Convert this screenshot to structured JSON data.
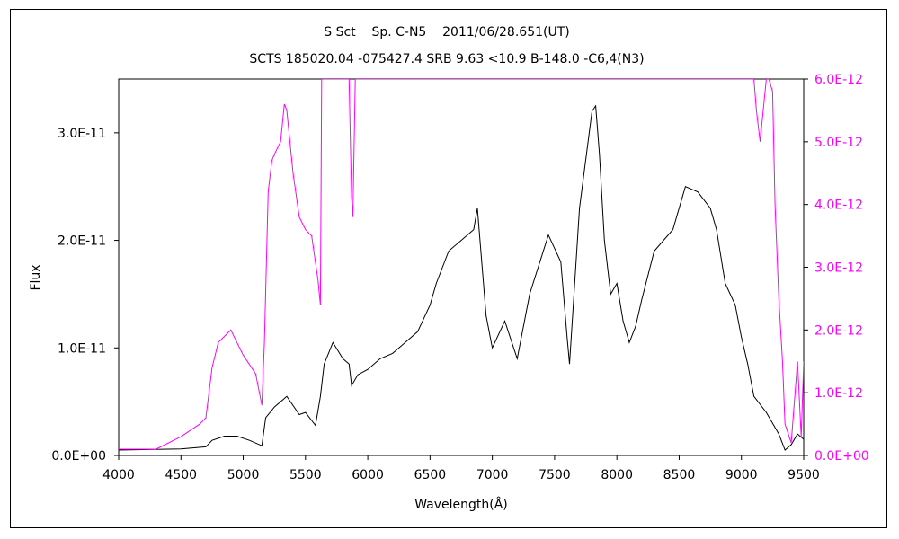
{
  "chart_data": {
    "type": "line",
    "title": "S Sct    Sp. C-N5    2011/06/28.651(UT)",
    "subtitle": "SCTS 185020.04 -075427.4 SRB 9.63 <10.9 B-148.0 -C6,4(N3)",
    "xlabel": "Wavelength(Å)",
    "ylabel": "Flux",
    "xlim": [
      4000,
      9500
    ],
    "ylim": [
      0,
      3.5e-11
    ],
    "y2lim": [
      0,
      6e-12
    ],
    "x_ticks": [
      "4000",
      "4500",
      "5000",
      "5500",
      "6000",
      "6500",
      "7000",
      "7500",
      "8000",
      "8500",
      "9000",
      "9500"
    ],
    "y_ticks": [
      "0.0E+00",
      "1.0E-11",
      "2.0E-11",
      "3.0E-11"
    ],
    "y2_ticks": [
      "0.0E+00",
      "1.0E-12",
      "2.0E-12",
      "3.0E-12",
      "4.0E-12",
      "5.0E-12",
      "6.0E-12"
    ],
    "grid": false,
    "colors": {
      "primary": "#000000",
      "secondary": "#ff00ff"
    },
    "series": [
      {
        "axis": "left",
        "color": "#000000",
        "x": [
          4000,
          4500,
          4700,
          4750,
          4850,
          4950,
          5050,
          5150,
          5180,
          5250,
          5350,
          5450,
          5500,
          5580,
          5620,
          5650,
          5720,
          5800,
          5850,
          5870,
          5920,
          6000,
          6100,
          6200,
          6300,
          6400,
          6500,
          6550,
          6650,
          6750,
          6850,
          6880,
          6950,
          7000,
          7100,
          7200,
          7300,
          7450,
          7550,
          7600,
          7620,
          7700,
          7800,
          7830,
          7860,
          7900,
          7950,
          8000,
          8050,
          8100,
          8150,
          8200,
          8300,
          8450,
          8550,
          8650,
          8750,
          8800,
          8870,
          8950,
          9000,
          9050,
          9100,
          9200,
          9300,
          9350,
          9400,
          9450,
          9500
        ],
        "y": [
          5e-13,
          6e-13,
          8e-13,
          1.4e-12,
          1.8e-12,
          1.8e-12,
          1.4e-12,
          9e-13,
          3.5e-12,
          4.5e-12,
          5.5e-12,
          3.8e-12,
          4e-12,
          2.8e-12,
          5.5e-12,
          8.5e-12,
          1.05e-11,
          9e-12,
          8.5e-12,
          6.5e-12,
          7.5e-12,
          8e-12,
          9e-12,
          9.5e-12,
          1.05e-11,
          1.15e-11,
          1.4e-11,
          1.6e-11,
          1.9e-11,
          2e-11,
          2.1e-11,
          2.3e-11,
          1.3e-11,
          1e-11,
          1.25e-11,
          9e-12,
          1.5e-11,
          2.05e-11,
          1.8e-11,
          1.1e-11,
          8.5e-12,
          2.3e-11,
          3.2e-11,
          3.25e-11,
          2.8e-11,
          2e-11,
          1.5e-11,
          1.6e-11,
          1.25e-11,
          1.05e-11,
          1.2e-11,
          1.45e-11,
          1.9e-11,
          2.1e-11,
          2.5e-11,
          2.45e-11,
          2.3e-11,
          2.1e-11,
          1.6e-11,
          1.4e-11,
          1.1e-11,
          8.5e-12,
          5.5e-12,
          4e-12,
          2e-12,
          5e-13,
          1e-12,
          2e-12,
          1.5e-12
        ]
      },
      {
        "axis": "right",
        "color": "#ff00ff",
        "x": [
          4000,
          4300,
          4500,
          4650,
          4700,
          4750,
          4800,
          4900,
          4950,
          5000,
          5100,
          5150,
          5170,
          5200,
          5230,
          5250,
          5300,
          5330,
          5350,
          5400,
          5450,
          5500,
          5550,
          5600,
          5620,
          5630,
          5800,
          5850,
          5870,
          5880,
          5900,
          5910,
          9100,
          9120,
          9150,
          9200,
          9220,
          9250,
          9270,
          9300,
          9330,
          9350,
          9400,
          9450,
          9480,
          9500
        ],
        "y": [
          1e-13,
          1e-13,
          3e-13,
          5e-13,
          6e-13,
          1.4e-12,
          1.8e-12,
          2e-12,
          1.8e-12,
          1.6e-12,
          1.3e-12,
          8e-13,
          1.8e-12,
          4.2e-12,
          4.7e-12,
          4.8e-12,
          5e-12,
          5.6e-12,
          5.5e-12,
          4.5e-12,
          3.8e-12,
          3.6e-12,
          3.5e-12,
          2.8e-12,
          2.4e-12,
          6e-12,
          6e-12,
          6e-12,
          4.1e-12,
          3.8e-12,
          6e-12,
          6e-12,
          6e-12,
          5.5e-12,
          5e-12,
          6e-12,
          6e-12,
          5.8e-12,
          4e-12,
          2.5e-12,
          1.5e-12,
          5e-13,
          2e-13,
          1.5e-12,
          3e-13,
          1.5e-12
        ]
      }
    ]
  }
}
